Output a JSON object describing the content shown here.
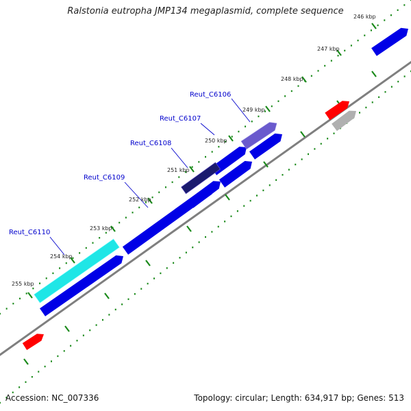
{
  "title": "Ralstonia eutropha JMP134 megaplasmid, complete sequence",
  "footer": {
    "accession": "Accession: NC_007336",
    "summary": "Topology: circular; Length: 634,917 bp; Genes: 513"
  },
  "colors": {
    "background": "#ffffff",
    "backbone": "#7f7f7f",
    "tick": "#1b8a1b",
    "gene_plus": "#0000e6",
    "gene_label": "#0000cc",
    "highlight_cyan": "#1fe6e6",
    "highlight_violet": "#6a5acd",
    "highlight_dark": "#1a1a6e",
    "feature_red": "#ff0000",
    "feature_gray": "#b0b0b0"
  },
  "ticks": [
    {
      "label": "246 kbp"
    },
    {
      "label": "247 kbp"
    },
    {
      "label": "248 kbp"
    },
    {
      "label": "249 kbp"
    },
    {
      "label": "250 kbp"
    },
    {
      "label": "251 kbp"
    },
    {
      "label": "252 kbp"
    },
    {
      "label": "253 kbp"
    },
    {
      "label": "254 kbp"
    },
    {
      "label": "255 kbp"
    }
  ],
  "genes": [
    {
      "label": "Reut_C6106"
    },
    {
      "label": "Reut_C6107"
    },
    {
      "label": "Reut_C6108"
    },
    {
      "label": "Reut_C6109"
    },
    {
      "label": "Reut_C6110"
    }
  ]
}
